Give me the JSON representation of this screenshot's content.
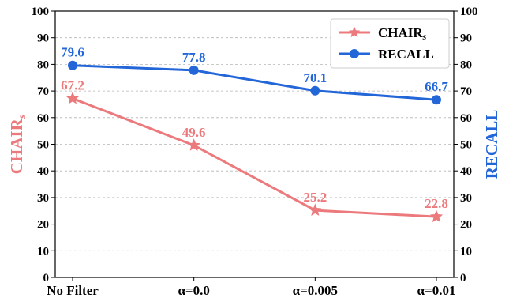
{
  "chart_data": {
    "type": "line",
    "categories": [
      "No Filter",
      "α=0.0",
      "α=0.005",
      "α=0.01"
    ],
    "series": [
      {
        "name": "CHAIRs",
        "axis": "left",
        "color": "#ec7a7d",
        "marker": "star",
        "values": [
          67.2,
          49.6,
          25.2,
          22.8
        ]
      },
      {
        "name": "RECALL",
        "axis": "right",
        "color": "#2366d8",
        "marker": "circle",
        "values": [
          79.6,
          77.8,
          70.1,
          66.7
        ]
      }
    ],
    "data_labels": {
      "CHAIRs": [
        "67.2",
        "49.6",
        "25.2",
        "22.8"
      ],
      "RECALL": [
        "79.6",
        "77.8",
        "70.1",
        "66.7"
      ]
    },
    "ylabel_left": "CHAIRs",
    "ylabel_right": "RECALL",
    "ylim_left": [
      0,
      100
    ],
    "ylim_right": [
      0,
      100
    ],
    "yticks_left": [
      "0",
      "10",
      "20",
      "30",
      "40",
      "50",
      "60",
      "70",
      "80",
      "90",
      "100"
    ],
    "yticks_right": [
      "0",
      "10",
      "20",
      "30",
      "40",
      "50",
      "60",
      "70",
      "80",
      "90",
      "100"
    ],
    "grid": "horizontal dashed",
    "legend_position": "top-right"
  }
}
